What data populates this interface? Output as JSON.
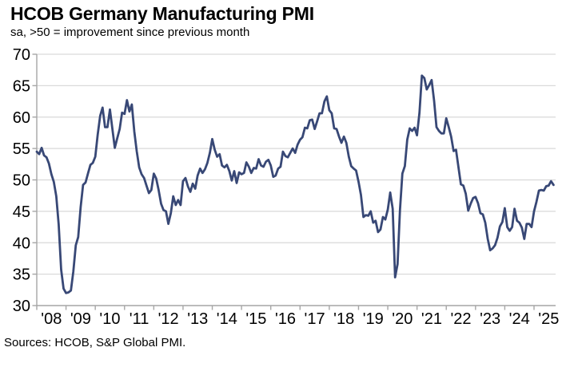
{
  "header": {
    "title": "HCOB Germany Manufacturing PMI",
    "subtitle": "sa, >50 = improvement since previous month"
  },
  "footer": {
    "sources": "Sources: HCOB, S&P Global PMI."
  },
  "chart_data": {
    "type": "line",
    "title": "HCOB Germany Manufacturing PMI",
    "subtitle": "sa, >50 = improvement since previous month",
    "xlabel": "",
    "ylabel": "",
    "ylim": [
      30,
      70
    ],
    "y_ticks": [
      30,
      35,
      40,
      45,
      50,
      55,
      60,
      65,
      70
    ],
    "x_tick_labels": [
      "'08",
      "'09",
      "'10",
      "'11",
      "'12",
      "'13",
      "'14",
      "'15",
      "'16",
      "'17",
      "'18",
      "'19",
      "'20",
      "'21",
      "'22",
      "'23",
      "'24",
      "'25"
    ],
    "grid": "horizontal gridlines every 5 points",
    "legend": "none",
    "line_color": "#384876",
    "axis_color": "#a6a6a6",
    "gridline_color": "#d9d9d9",
    "reference_level": 50,
    "series": [
      {
        "name": "Germany Manufacturing PMI (sa)",
        "frequency": "monthly",
        "start": "2008-01",
        "end": "2025-09",
        "values": [
          54.5,
          54.1,
          55.1,
          53.9,
          53.6,
          52.6,
          50.9,
          49.7,
          47.4,
          42.9,
          35.7,
          32.7,
          32.0,
          32.1,
          32.4,
          35.4,
          39.6,
          40.9,
          45.7,
          49.2,
          49.6,
          51.0,
          52.4,
          52.7,
          53.7,
          57.2,
          60.2,
          61.5,
          58.4,
          58.4,
          61.2,
          58.2,
          55.1,
          56.6,
          58.1,
          60.7,
          60.5,
          62.7,
          60.9,
          62.0,
          57.7,
          54.6,
          52.0,
          50.9,
          50.3,
          49.1,
          47.9,
          48.4,
          51.0,
          50.2,
          48.4,
          46.2,
          45.2,
          45.0,
          43.0,
          44.7,
          47.4,
          46.0,
          46.8,
          46.0,
          49.8,
          50.3,
          49.0,
          48.1,
          49.4,
          48.6,
          50.7,
          51.8,
          51.1,
          51.7,
          52.7,
          54.3,
          56.5,
          54.8,
          53.7,
          54.1,
          52.3,
          52.0,
          52.4,
          51.4,
          49.9,
          51.4,
          49.5,
          51.2,
          50.9,
          51.1,
          52.8,
          52.1,
          51.1,
          51.9,
          51.8,
          53.3,
          52.3,
          52.1,
          52.9,
          53.2,
          52.3,
          50.5,
          50.7,
          51.8,
          52.1,
          54.5,
          53.8,
          53.6,
          54.3,
          55.0,
          54.3,
          55.6,
          56.4,
          56.8,
          58.3,
          58.2,
          59.5,
          59.6,
          58.1,
          59.3,
          60.6,
          60.6,
          62.5,
          63.3,
          61.1,
          60.6,
          58.2,
          58.1,
          56.9,
          55.9,
          56.9,
          55.9,
          53.7,
          52.2,
          51.8,
          51.5,
          49.7,
          47.6,
          44.1,
          44.4,
          44.3,
          45.0,
          43.2,
          43.5,
          41.7,
          42.1,
          44.1,
          43.7,
          45.3,
          48.0,
          45.4,
          34.5,
          36.6,
          45.2,
          51.0,
          52.2,
          56.4,
          58.2,
          57.8,
          58.3,
          57.1,
          60.7,
          66.6,
          66.2,
          64.4,
          65.1,
          65.9,
          62.6,
          58.4,
          57.8,
          57.4,
          57.4,
          59.8,
          58.4,
          56.9,
          54.6,
          54.8,
          52.0,
          49.3,
          49.1,
          47.8,
          45.1,
          46.2,
          47.1,
          47.3,
          46.3,
          44.7,
          44.5,
          43.2,
          40.6,
          38.8,
          39.1,
          39.6,
          40.8,
          42.6,
          43.3,
          45.5,
          42.5,
          41.9,
          42.5,
          45.4,
          43.5,
          43.2,
          42.4,
          40.6,
          43.0,
          43.0,
          42.5,
          45.0,
          46.5,
          48.3,
          48.4,
          48.3,
          49.0,
          49.1,
          49.8,
          49.2
        ]
      }
    ]
  }
}
